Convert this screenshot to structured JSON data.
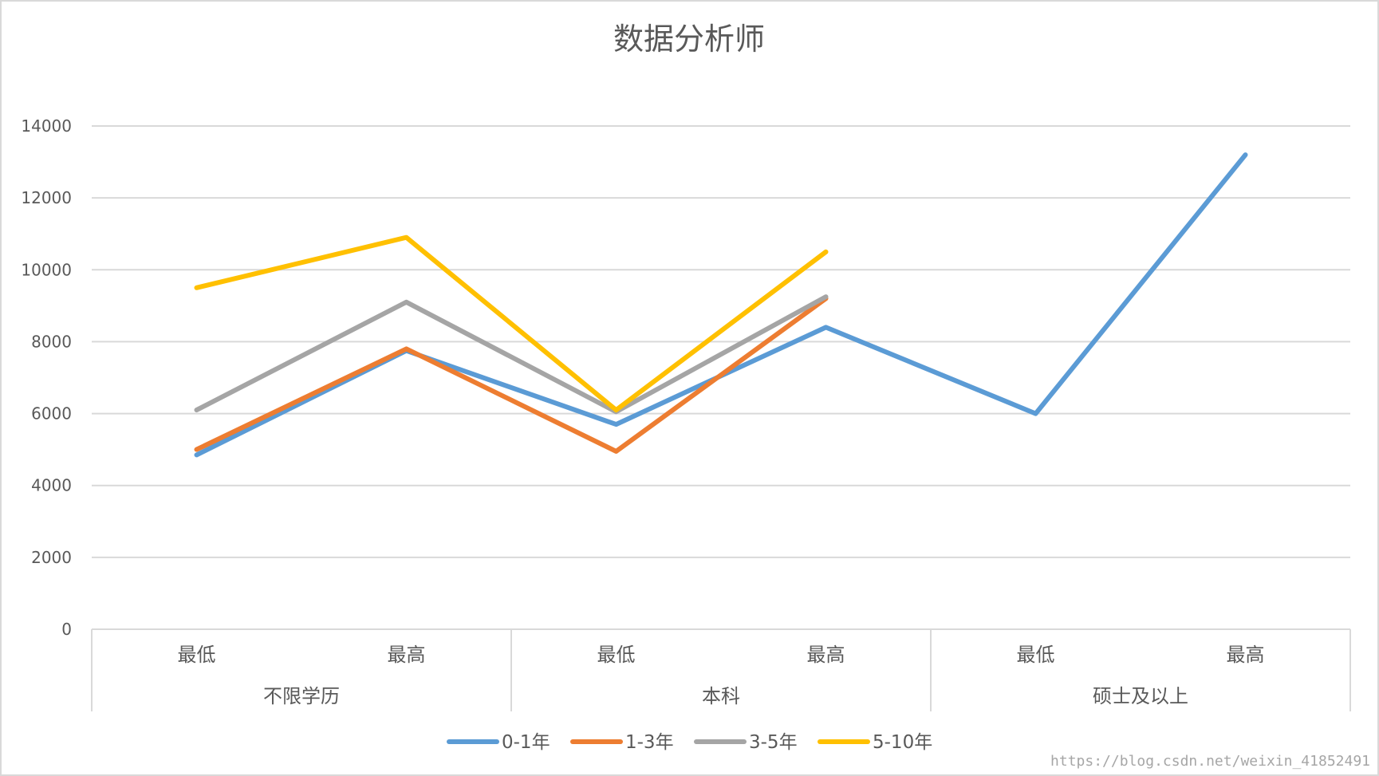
{
  "chart_data": {
    "type": "line",
    "title": "数据分析师",
    "xlabel": "",
    "ylabel": "",
    "ylim": [
      0,
      14000
    ],
    "yticks": [
      0,
      2000,
      4000,
      6000,
      8000,
      10000,
      12000,
      14000
    ],
    "grid": true,
    "legend_position": "bottom",
    "groups": [
      {
        "label": "不限学历",
        "categories": [
          "最低",
          "最高"
        ]
      },
      {
        "label": "本科",
        "categories": [
          "最低",
          "最高"
        ]
      },
      {
        "label": "硕士及以上",
        "categories": [
          "最低",
          "最高"
        ]
      }
    ],
    "series": [
      {
        "name": "0-1年",
        "color": "#5b9bd5",
        "values": [
          4850,
          7750,
          5700,
          8400,
          6000,
          13200
        ]
      },
      {
        "name": "1-3年",
        "color": "#ed7d31",
        "values": [
          5000,
          7800,
          4950,
          9200,
          null,
          null
        ]
      },
      {
        "name": "3-5年",
        "color": "#a5a5a5",
        "values": [
          6100,
          9100,
          6050,
          9250,
          null,
          null
        ]
      },
      {
        "name": "5-10年",
        "color": "#ffc000",
        "values": [
          9500,
          10900,
          6100,
          10500,
          null,
          null
        ]
      }
    ]
  },
  "watermark": "https://blog.csdn.net/weixin_41852491"
}
